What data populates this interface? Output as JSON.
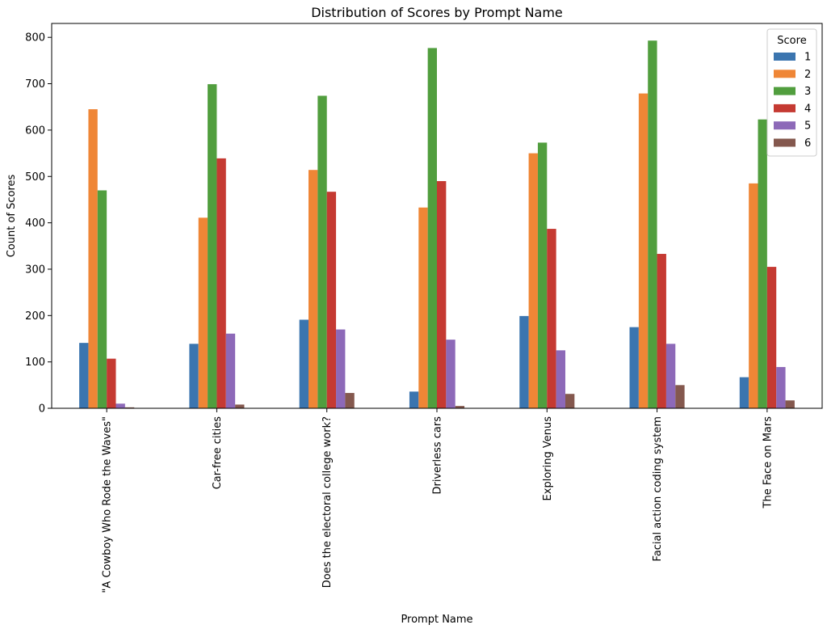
{
  "chart_data": {
    "type": "bar",
    "title": "Distribution of Scores by Prompt Name",
    "xlabel": "Prompt Name",
    "ylabel": "Count of Scores",
    "ylim": [
      0,
      830
    ],
    "yticks": [
      0,
      100,
      200,
      300,
      400,
      500,
      600,
      700,
      800
    ],
    "categories": [
      "\"A Cowboy Who Rode the Waves\"",
      "Car-free cities",
      "Does the electoral college work?",
      "Driverless cars",
      "Exploring Venus",
      "Facial action coding system",
      "The Face on Mars"
    ],
    "legend_title": "Score",
    "legend_position": "top-right",
    "series": [
      {
        "name": "1",
        "color": "#3b75af",
        "values": [
          141,
          139,
          191,
          36,
          199,
          175,
          67
        ]
      },
      {
        "name": "2",
        "color": "#ef8636",
        "values": [
          645,
          411,
          514,
          433,
          550,
          679,
          485
        ]
      },
      {
        "name": "3",
        "color": "#519e3e",
        "values": [
          470,
          699,
          674,
          777,
          573,
          793,
          623
        ]
      },
      {
        "name": "4",
        "color": "#c53a32",
        "values": [
          107,
          539,
          467,
          490,
          387,
          333,
          305
        ]
      },
      {
        "name": "5",
        "color": "#8d69b8",
        "values": [
          10,
          161,
          170,
          148,
          125,
          139,
          89
        ]
      },
      {
        "name": "6",
        "color": "#84584e",
        "values": [
          2,
          8,
          33,
          5,
          31,
          50,
          17
        ]
      }
    ]
  }
}
